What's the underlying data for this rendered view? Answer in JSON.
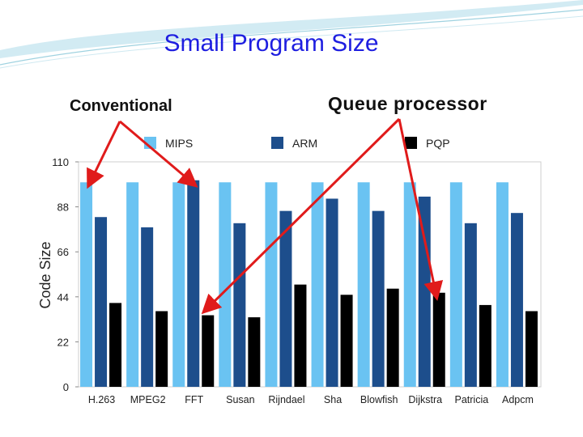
{
  "slide": {
    "title": "Small Program Size",
    "annotation_left": "Conventional",
    "annotation_right": "Queue processor"
  },
  "colors": {
    "title": "#1e1ee0",
    "mips": "#6ac3f2",
    "arm": "#1d4e8c",
    "pqp": "#000000",
    "arrow": "#e01b1b",
    "plot_bg": "#ffffff",
    "grid": "#d0d0d0"
  },
  "chart_data": {
    "type": "bar",
    "title": "",
    "xlabel": "",
    "ylabel": "Code Size",
    "ylim": [
      0,
      110
    ],
    "yticks": [
      0,
      22,
      44,
      66,
      88,
      110
    ],
    "grid": false,
    "legend_position": "top",
    "categories": [
      "H.263",
      "MPEG2",
      "FFT",
      "Susan",
      "Rijndael",
      "Sha",
      "Blowfish",
      "Dijkstra",
      "Patricia",
      "Adpcm"
    ],
    "series": [
      {
        "name": "MIPS",
        "values": [
          100,
          100,
          100,
          100,
          100,
          100,
          100,
          100,
          100,
          100
        ]
      },
      {
        "name": "ARM",
        "values": [
          83,
          78,
          101,
          80,
          86,
          92,
          86,
          93,
          80,
          85
        ]
      },
      {
        "name": "PQP",
        "values": [
          41,
          37,
          35,
          34,
          50,
          45,
          48,
          46,
          40,
          37
        ]
      }
    ]
  }
}
